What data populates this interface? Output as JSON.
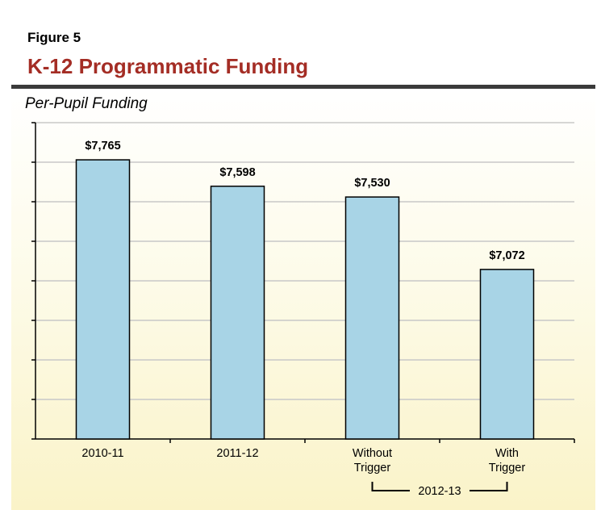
{
  "figure_label": "Figure 5",
  "title": "K-12 Programmatic Funding",
  "chart_data": {
    "type": "bar",
    "title": "K-12 Programmatic Funding",
    "ylabel": "Per-Pupil Funding",
    "xlabel": "",
    "categories": [
      [
        "2010-11"
      ],
      [
        "2011-12"
      ],
      [
        "Without",
        "Trigger"
      ],
      [
        "With",
        "Trigger"
      ]
    ],
    "values": [
      7765,
      7598,
      7530,
      7072
    ],
    "data_labels": [
      "$7,765",
      "$7,598",
      "$7,530",
      "$7,072"
    ],
    "ylim": [
      6000,
      8000
    ],
    "y_tick_step": 250,
    "grid": true,
    "group_label": {
      "text": "2012-13",
      "categories": [
        2,
        3
      ]
    },
    "bar_color": "#a8d4e6"
  }
}
